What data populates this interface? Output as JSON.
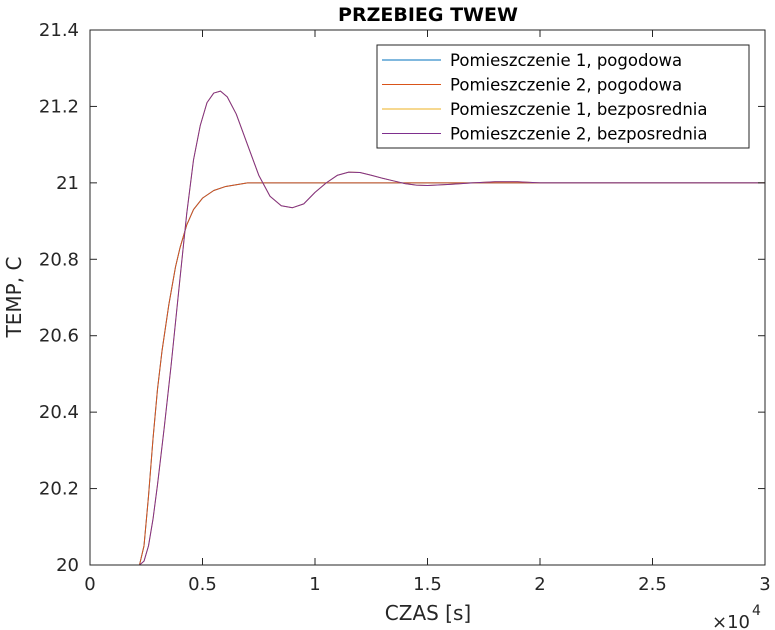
{
  "chart_data": {
    "type": "line",
    "title": "PRZEBIEG TWEW",
    "xlabel": "CZAS [s]",
    "ylabel": "TEMP, C",
    "x_exponent_label": {
      "base": "×10",
      "exp": "4"
    },
    "xlim": [
      0,
      30000
    ],
    "ylim": [
      20,
      21.4
    ],
    "xticks": [
      0,
      5000,
      10000,
      15000,
      20000,
      25000,
      30000
    ],
    "xtick_labels": [
      "0",
      "0.5",
      "1",
      "1.5",
      "2",
      "2.5",
      "3"
    ],
    "yticks": [
      20,
      20.2,
      20.4,
      20.6,
      20.8,
      21,
      21.2,
      21.4
    ],
    "ytick_labels": [
      "20",
      "20.2",
      "20.4",
      "20.6",
      "20.8",
      "21",
      "21.2",
      "21.4"
    ],
    "grid": false,
    "legend_position": "top-right",
    "series": [
      {
        "name": "Pomieszczenie 1, pogodowa",
        "color": "#0072BD",
        "x": [
          0,
          2200,
          2400,
          2600,
          2800,
          3000,
          3200,
          3500,
          3800,
          4000,
          4300,
          4600,
          5000,
          5500,
          6000,
          6500,
          7000,
          8000,
          9000,
          10000,
          12000,
          15000,
          20000,
          25000,
          30000
        ],
        "y": [
          20,
          20,
          20.05,
          20.18,
          20.33,
          20.46,
          20.56,
          20.68,
          20.78,
          20.83,
          20.89,
          20.93,
          20.96,
          20.98,
          20.99,
          20.995,
          21.0,
          21.0,
          21.0,
          21.0,
          21.0,
          21.0,
          21.0,
          21.0,
          21.0
        ]
      },
      {
        "name": "Pomieszczenie 2, pogodowa",
        "color": "#D95319",
        "x": [
          0,
          2200,
          2400,
          2600,
          2800,
          3000,
          3200,
          3500,
          3800,
          4000,
          4300,
          4600,
          5000,
          5500,
          6000,
          6500,
          7000,
          8000,
          9000,
          10000,
          12000,
          15000,
          20000,
          25000,
          30000
        ],
        "y": [
          20,
          20,
          20.05,
          20.18,
          20.33,
          20.46,
          20.56,
          20.68,
          20.78,
          20.83,
          20.89,
          20.93,
          20.96,
          20.98,
          20.99,
          20.995,
          21.0,
          21.0,
          21.0,
          21.0,
          21.0,
          21.0,
          21.0,
          21.0,
          21.0
        ]
      },
      {
        "name": "Pomieszczenie 1, bezposrednia",
        "color": "#EDB120",
        "x": [
          0,
          2200,
          2400,
          2600,
          2800,
          3000,
          3300,
          3600,
          4000,
          4300,
          4600,
          4900,
          5200,
          5500,
          5800,
          6100,
          6500,
          7000,
          7500,
          8000,
          8500,
          9000,
          9500,
          10000,
          10500,
          11000,
          11500,
          12000,
          12500,
          13000,
          13500,
          14000,
          14500,
          15000,
          16000,
          17000,
          18000,
          19000,
          20000,
          22000,
          25000,
          30000
        ],
        "y": [
          20,
          20,
          20.01,
          20.05,
          20.12,
          20.21,
          20.36,
          20.52,
          20.75,
          20.92,
          21.06,
          21.15,
          21.21,
          21.235,
          21.24,
          21.225,
          21.18,
          21.1,
          21.02,
          20.965,
          20.94,
          20.935,
          20.945,
          20.975,
          21.0,
          21.02,
          21.028,
          21.027,
          21.02,
          21.012,
          21.005,
          20.998,
          20.994,
          20.993,
          20.996,
          21.0,
          21.003,
          21.003,
          21.0,
          21.0,
          21.0,
          21.0
        ]
      },
      {
        "name": "Pomieszczenie 2, bezposrednia",
        "color": "#7E2F8E",
        "x": [
          0,
          2200,
          2400,
          2600,
          2800,
          3000,
          3300,
          3600,
          4000,
          4300,
          4600,
          4900,
          5200,
          5500,
          5800,
          6100,
          6500,
          7000,
          7500,
          8000,
          8500,
          9000,
          9500,
          10000,
          10500,
          11000,
          11500,
          12000,
          12500,
          13000,
          13500,
          14000,
          14500,
          15000,
          16000,
          17000,
          18000,
          19000,
          20000,
          22000,
          25000,
          30000
        ],
        "y": [
          20,
          20,
          20.01,
          20.05,
          20.12,
          20.21,
          20.36,
          20.52,
          20.75,
          20.92,
          21.06,
          21.15,
          21.21,
          21.235,
          21.24,
          21.225,
          21.18,
          21.1,
          21.02,
          20.965,
          20.94,
          20.935,
          20.945,
          20.975,
          21.0,
          21.02,
          21.028,
          21.027,
          21.02,
          21.012,
          21.005,
          20.998,
          20.994,
          20.993,
          20.996,
          21.0,
          21.003,
          21.003,
          21.0,
          21.0,
          21.0,
          21.0
        ]
      }
    ]
  }
}
